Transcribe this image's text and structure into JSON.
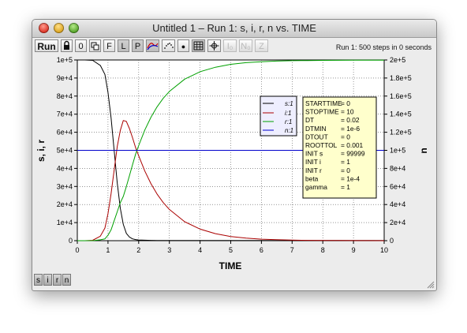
{
  "window": {
    "title": "Untitled 1 – Run 1: s, i, r, n vs. TIME"
  },
  "toolbar": {
    "run_label": "Run",
    "buttons": [
      {
        "label": "",
        "icon": "lock-icon"
      },
      {
        "label": "0"
      },
      {
        "label": "",
        "icon": "copy-icon"
      },
      {
        "label": "F"
      },
      {
        "label": "L"
      },
      {
        "label": "P"
      },
      {
        "label": "",
        "icon": "curves-icon"
      },
      {
        "label": "",
        "icon": "dots-icon"
      },
      {
        "label": "●"
      },
      {
        "label": "",
        "icon": "grid-icon"
      },
      {
        "label": "",
        "icon": "crosshair-icon"
      },
      {
        "label": "I₀"
      },
      {
        "label": "N₀"
      },
      {
        "label": "Z"
      }
    ]
  },
  "status": "Run 1: 500 steps in 0 seconds",
  "params": [
    {
      "name": "STARTTIME",
      "value": "= 0"
    },
    {
      "name": "STOPTIME",
      "value": "= 10"
    },
    {
      "name": "DT",
      "value": "= 0.02"
    },
    {
      "name": "DTMIN",
      "value": "= 1e-6"
    },
    {
      "name": "DTOUT",
      "value": "= 0"
    },
    {
      "name": "ROOTTOL",
      "value": "= 0.001"
    },
    {
      "name": "INIT s",
      "value": "= 99999"
    },
    {
      "name": "INIT i",
      "value": "= 1"
    },
    {
      "name": "INIT r",
      "value": "= 0"
    },
    {
      "name": "beta",
      "value": "= 1e-4"
    },
    {
      "name": "gamma",
      "value": "= 1"
    }
  ],
  "var_buttons": [
    "s",
    "i",
    "r",
    "n"
  ],
  "colors": {
    "s": "#000000",
    "i": "#aa0000",
    "r": "#00a000",
    "n": "#0000cc"
  },
  "chart_data": {
    "type": "line",
    "title": "",
    "xlabel": "TIME",
    "ylabel": "s, i, r",
    "y2label": "n",
    "xlim": [
      0,
      10
    ],
    "ylim": [
      0,
      100000
    ],
    "y2lim": [
      0,
      200000
    ],
    "x_ticks": [
      "0",
      "1",
      "2",
      "3",
      "4",
      "5",
      "6",
      "7",
      "8",
      "9",
      "10"
    ],
    "y_ticks": [
      "0",
      "1e+4",
      "2e+4",
      "3e+4",
      "4e+4",
      "5e+4",
      "6e+4",
      "7e+4",
      "8e+4",
      "9e+4",
      "1e+5"
    ],
    "y2_ticks": [
      "0",
      "2e+4",
      "4e+4",
      "6e+4",
      "8e+4",
      "1e+5",
      "1.2e+5",
      "1.4e+5",
      "1.6e+5",
      "1.8e+5",
      "2e+5"
    ],
    "grid": true,
    "legend": "center-right",
    "x": [
      0,
      0.25,
      0.5,
      0.75,
      0.9,
      1.0,
      1.1,
      1.2,
      1.3,
      1.4,
      1.5,
      1.6,
      1.7,
      1.8,
      1.9,
      2.0,
      2.2,
      2.4,
      2.6,
      2.8,
      3.0,
      3.5,
      4.0,
      4.5,
      5.0,
      5.5,
      6.0,
      6.5,
      7.0,
      7.5,
      8.0,
      8.5,
      9.0,
      9.5,
      10.0
    ],
    "series": [
      {
        "name": "s:1",
        "axis": "left",
        "values": [
          99999,
          99990,
          99800,
          97000,
          92000,
          82000,
          68000,
          50000,
          32000,
          18000,
          9000,
          4000,
          2000,
          1000,
          600,
          400,
          250,
          180,
          140,
          120,
          110,
          100,
          100,
          100,
          100,
          100,
          100,
          100,
          100,
          100,
          100,
          100,
          100,
          100,
          100
        ]
      },
      {
        "name": "i:1",
        "axis": "left",
        "values": [
          1,
          10,
          200,
          2500,
          7000,
          15000,
          26000,
          39000,
          52000,
          61000,
          66500,
          66000,
          62000,
          57000,
          51500,
          47000,
          38500,
          31500,
          25800,
          21100,
          17300,
          10500,
          6400,
          3900,
          2300,
          1400,
          850,
          520,
          310,
          190,
          115,
          70,
          42,
          26,
          16
        ]
      },
      {
        "name": "r:1",
        "axis": "left",
        "values": [
          0,
          0,
          0,
          500,
          1000,
          3000,
          6000,
          11000,
          16000,
          21000,
          24500,
          30000,
          36000,
          42000,
          47900,
          52600,
          61250,
          68320,
          74060,
          78780,
          82590,
          89400,
          93500,
          96000,
          97600,
          98500,
          99050,
          99380,
          99590,
          99710,
          99785,
          99830,
          99858,
          99874,
          99884
        ]
      },
      {
        "name": "n:1",
        "axis": "right",
        "values": [
          100000,
          100000,
          100000,
          100000,
          100000,
          100000,
          100000,
          100000,
          100000,
          100000,
          100000,
          100000,
          100000,
          100000,
          100000,
          100000,
          100000,
          100000,
          100000,
          100000,
          100000,
          100000,
          100000,
          100000,
          100000,
          100000,
          100000,
          100000,
          100000,
          100000,
          100000,
          100000,
          100000,
          100000,
          100000
        ]
      }
    ]
  }
}
